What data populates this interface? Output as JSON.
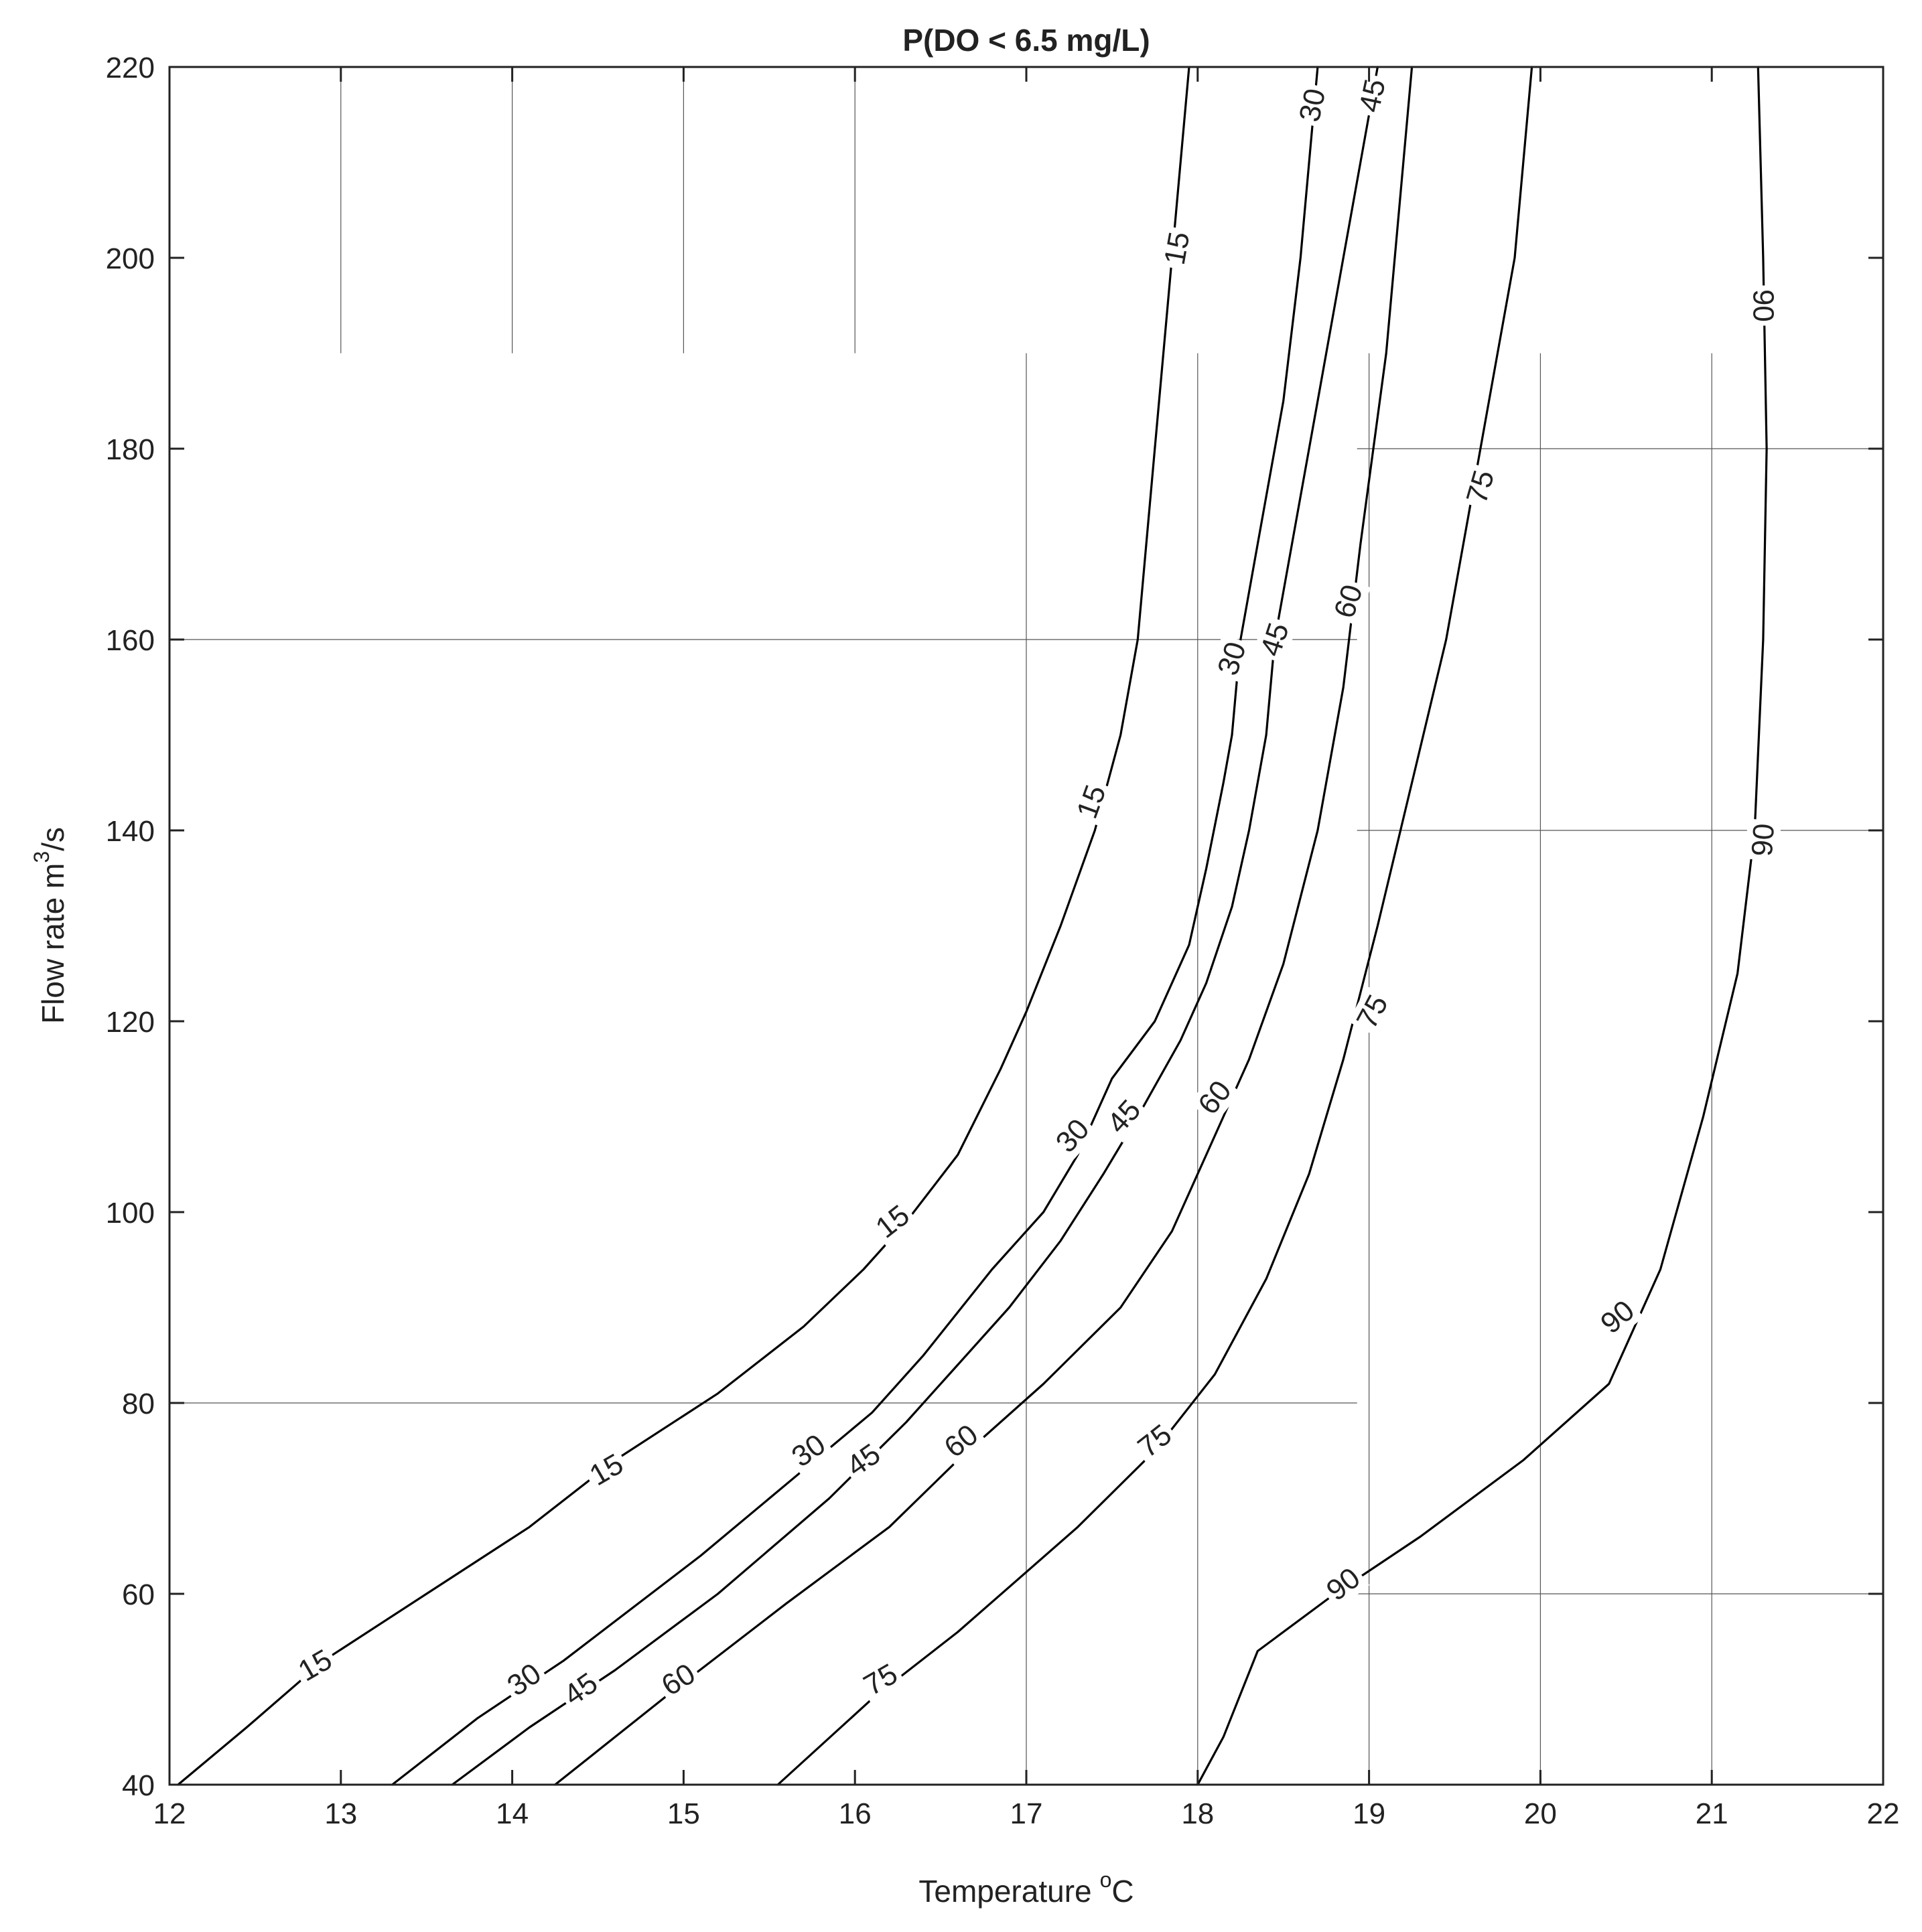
{
  "chart_data": {
    "type": "contour",
    "title": "P(DO < 6.5 mg/L)",
    "xlabel": "Temperature",
    "xlabel_unit_sup": "o",
    "xlabel_unit": "C",
    "ylabel": "Flow rate m",
    "ylabel_sup": "3",
    "ylabel_unit": "/s",
    "xlim": [
      12,
      22
    ],
    "ylim": [
      40,
      220
    ],
    "xticks": [
      12,
      13,
      14,
      15,
      16,
      17,
      18,
      19,
      20,
      21,
      22
    ],
    "yticks": [
      40,
      60,
      80,
      100,
      120,
      140,
      160,
      180,
      200,
      220
    ],
    "grid": "partial",
    "grid_segments": [
      {
        "orient": "v",
        "at": 13,
        "from": 190,
        "to": 220
      },
      {
        "orient": "v",
        "at": 14,
        "from": 190,
        "to": 220
      },
      {
        "orient": "v",
        "at": 15,
        "from": 190,
        "to": 220
      },
      {
        "orient": "v",
        "at": 16,
        "from": 190,
        "to": 220
      },
      {
        "orient": "v",
        "at": 17,
        "from": 40,
        "to": 190
      },
      {
        "orient": "v",
        "at": 18,
        "from": 40,
        "to": 190
      },
      {
        "orient": "v",
        "at": 19,
        "from": 40,
        "to": 190
      },
      {
        "orient": "v",
        "at": 20,
        "from": 40,
        "to": 190
      },
      {
        "orient": "v",
        "at": 21,
        "from": 40,
        "to": 190
      },
      {
        "orient": "h",
        "at": 160,
        "from": 12,
        "to": 18.93
      },
      {
        "orient": "h",
        "at": 80,
        "from": 12,
        "to": 18.93
      },
      {
        "orient": "h",
        "at": 180,
        "from": 18.93,
        "to": 22
      },
      {
        "orient": "h",
        "at": 140,
        "from": 18.93,
        "to": 22
      },
      {
        "orient": "h",
        "at": 60,
        "from": 18.93,
        "to": 22
      }
    ],
    "contours": [
      {
        "level": "15",
        "points": [
          [
            12.05,
            40
          ],
          [
            12.45,
            46
          ],
          [
            12.9,
            53
          ],
          [
            13.5,
            60
          ],
          [
            14.1,
            67
          ],
          [
            14.6,
            74
          ],
          [
            15.2,
            81
          ],
          [
            15.7,
            88
          ],
          [
            16.05,
            94
          ],
          [
            16.3,
            99
          ],
          [
            16.6,
            106
          ],
          [
            16.85,
            115
          ],
          [
            17.0,
            121
          ],
          [
            17.2,
            130
          ],
          [
            17.4,
            140
          ],
          [
            17.55,
            150
          ],
          [
            17.65,
            160
          ],
          [
            17.75,
            180
          ],
          [
            17.85,
            200
          ],
          [
            17.95,
            220
          ]
        ],
        "labels": [
          {
            "text": "15",
            "x": 12.85,
            "y": 52.5,
            "angle": -30
          },
          {
            "text": "15",
            "x": 14.55,
            "y": 73,
            "angle": -30
          },
          {
            "text": "15",
            "x": 16.22,
            "y": 99,
            "angle": -38
          },
          {
            "text": "15",
            "x": 17.38,
            "y": 143,
            "angle": -70
          },
          {
            "text": "15",
            "x": 17.88,
            "y": 201,
            "angle": -80
          }
        ]
      },
      {
        "level": "30",
        "points": [
          [
            13.3,
            40
          ],
          [
            13.8,
            47
          ],
          [
            14.3,
            53
          ],
          [
            15.1,
            64
          ],
          [
            15.7,
            73
          ],
          [
            16.1,
            79
          ],
          [
            16.4,
            85
          ],
          [
            16.8,
            94
          ],
          [
            17.1,
            100
          ],
          [
            17.3,
            106
          ],
          [
            17.5,
            114
          ],
          [
            17.75,
            120
          ],
          [
            17.95,
            128
          ],
          [
            18.05,
            136
          ],
          [
            18.15,
            145
          ],
          [
            18.2,
            150
          ],
          [
            18.25,
            160
          ],
          [
            18.35,
            170
          ],
          [
            18.5,
            185
          ],
          [
            18.6,
            200
          ],
          [
            18.65,
            210
          ],
          [
            18.7,
            220
          ]
        ],
        "labels": [
          {
            "text": "30",
            "x": 14.07,
            "y": 51,
            "angle": -35
          },
          {
            "text": "30",
            "x": 15.73,
            "y": 75,
            "angle": -35
          },
          {
            "text": "30",
            "x": 17.27,
            "y": 108,
            "angle": -48
          },
          {
            "text": "30",
            "x": 18.2,
            "y": 158,
            "angle": -72
          },
          {
            "text": "30",
            "x": 18.67,
            "y": 216,
            "angle": -78
          }
        ]
      },
      {
        "level": "45",
        "points": [
          [
            13.65,
            40
          ],
          [
            14.1,
            46
          ],
          [
            14.6,
            52
          ],
          [
            15.2,
            60
          ],
          [
            15.85,
            70
          ],
          [
            16.3,
            78
          ],
          [
            16.6,
            84
          ],
          [
            16.9,
            90
          ],
          [
            17.2,
            97
          ],
          [
            17.45,
            104
          ],
          [
            17.65,
            110
          ],
          [
            17.9,
            118
          ],
          [
            18.05,
            124
          ],
          [
            18.2,
            132
          ],
          [
            18.3,
            140
          ],
          [
            18.4,
            150
          ],
          [
            18.45,
            160
          ],
          [
            18.55,
            170
          ],
          [
            18.7,
            185
          ],
          [
            18.85,
            200
          ],
          [
            18.95,
            210
          ],
          [
            19.05,
            220
          ]
        ],
        "labels": [
          {
            "text": "45",
            "x": 14.4,
            "y": 50,
            "angle": -35
          },
          {
            "text": "45",
            "x": 16.05,
            "y": 74,
            "angle": -35
          },
          {
            "text": "45",
            "x": 17.57,
            "y": 110,
            "angle": -48
          },
          {
            "text": "45",
            "x": 18.45,
            "y": 160,
            "angle": -72
          },
          {
            "text": "45",
            "x": 19.02,
            "y": 217,
            "angle": -78
          }
        ]
      },
      {
        "level": "60",
        "points": [
          [
            14.25,
            40
          ],
          [
            14.6,
            45
          ],
          [
            14.95,
            50
          ],
          [
            15.6,
            59
          ],
          [
            16.2,
            67
          ],
          [
            16.6,
            74
          ],
          [
            17.1,
            82
          ],
          [
            17.55,
            90
          ],
          [
            17.85,
            98
          ],
          [
            18.05,
            106
          ],
          [
            18.3,
            116
          ],
          [
            18.5,
            126
          ],
          [
            18.7,
            140
          ],
          [
            18.85,
            155
          ],
          [
            18.95,
            170
          ],
          [
            19.1,
            190
          ],
          [
            19.2,
            210
          ],
          [
            19.25,
            220
          ]
        ],
        "labels": [
          {
            "text": "60",
            "x": 14.97,
            "y": 51,
            "angle": -32
          },
          {
            "text": "60",
            "x": 16.62,
            "y": 76,
            "angle": -38
          },
          {
            "text": "60",
            "x": 18.1,
            "y": 112,
            "angle": -52
          },
          {
            "text": "60",
            "x": 18.88,
            "y": 164,
            "angle": -72
          }
        ]
      },
      {
        "level": "75",
        "points": [
          [
            15.55,
            40
          ],
          [
            16.1,
            49
          ],
          [
            16.6,
            56
          ],
          [
            17.3,
            67
          ],
          [
            17.75,
            75
          ],
          [
            18.1,
            83
          ],
          [
            18.4,
            93
          ],
          [
            18.65,
            104
          ],
          [
            18.85,
            116
          ],
          [
            19.05,
            130
          ],
          [
            19.25,
            145
          ],
          [
            19.45,
            160
          ],
          [
            19.6,
            175
          ],
          [
            19.75,
            190
          ],
          [
            19.85,
            200
          ],
          [
            19.9,
            210
          ],
          [
            19.95,
            220
          ]
        ],
        "labels": [
          {
            "text": "75",
            "x": 16.15,
            "y": 51,
            "angle": -30
          },
          {
            "text": "75",
            "x": 17.75,
            "y": 76,
            "angle": -38
          },
          {
            "text": "75",
            "x": 19.02,
            "y": 121,
            "angle": -62
          },
          {
            "text": "75",
            "x": 19.65,
            "y": 176,
            "angle": -74
          }
        ]
      },
      {
        "level": "90",
        "points": [
          [
            18.0,
            40
          ],
          [
            18.15,
            45
          ],
          [
            18.35,
            54
          ],
          [
            18.8,
            60
          ],
          [
            19.3,
            66
          ],
          [
            19.9,
            74
          ],
          [
            20.4,
            82
          ],
          [
            20.7,
            94
          ],
          [
            20.95,
            110
          ],
          [
            21.15,
            125
          ],
          [
            21.25,
            140
          ],
          [
            21.3,
            160
          ],
          [
            21.32,
            180
          ],
          [
            21.3,
            200
          ],
          [
            21.27,
            220
          ]
        ],
        "labels": [
          {
            "text": "90",
            "x": 18.85,
            "y": 61,
            "angle": -38
          },
          {
            "text": "90",
            "x": 20.45,
            "y": 89,
            "angle": -40
          },
          {
            "text": "90",
            "x": 21.3,
            "y": 139,
            "angle": -86
          },
          {
            "text": "90",
            "x": 21.3,
            "y": 195,
            "angle": 90
          }
        ]
      }
    ]
  }
}
